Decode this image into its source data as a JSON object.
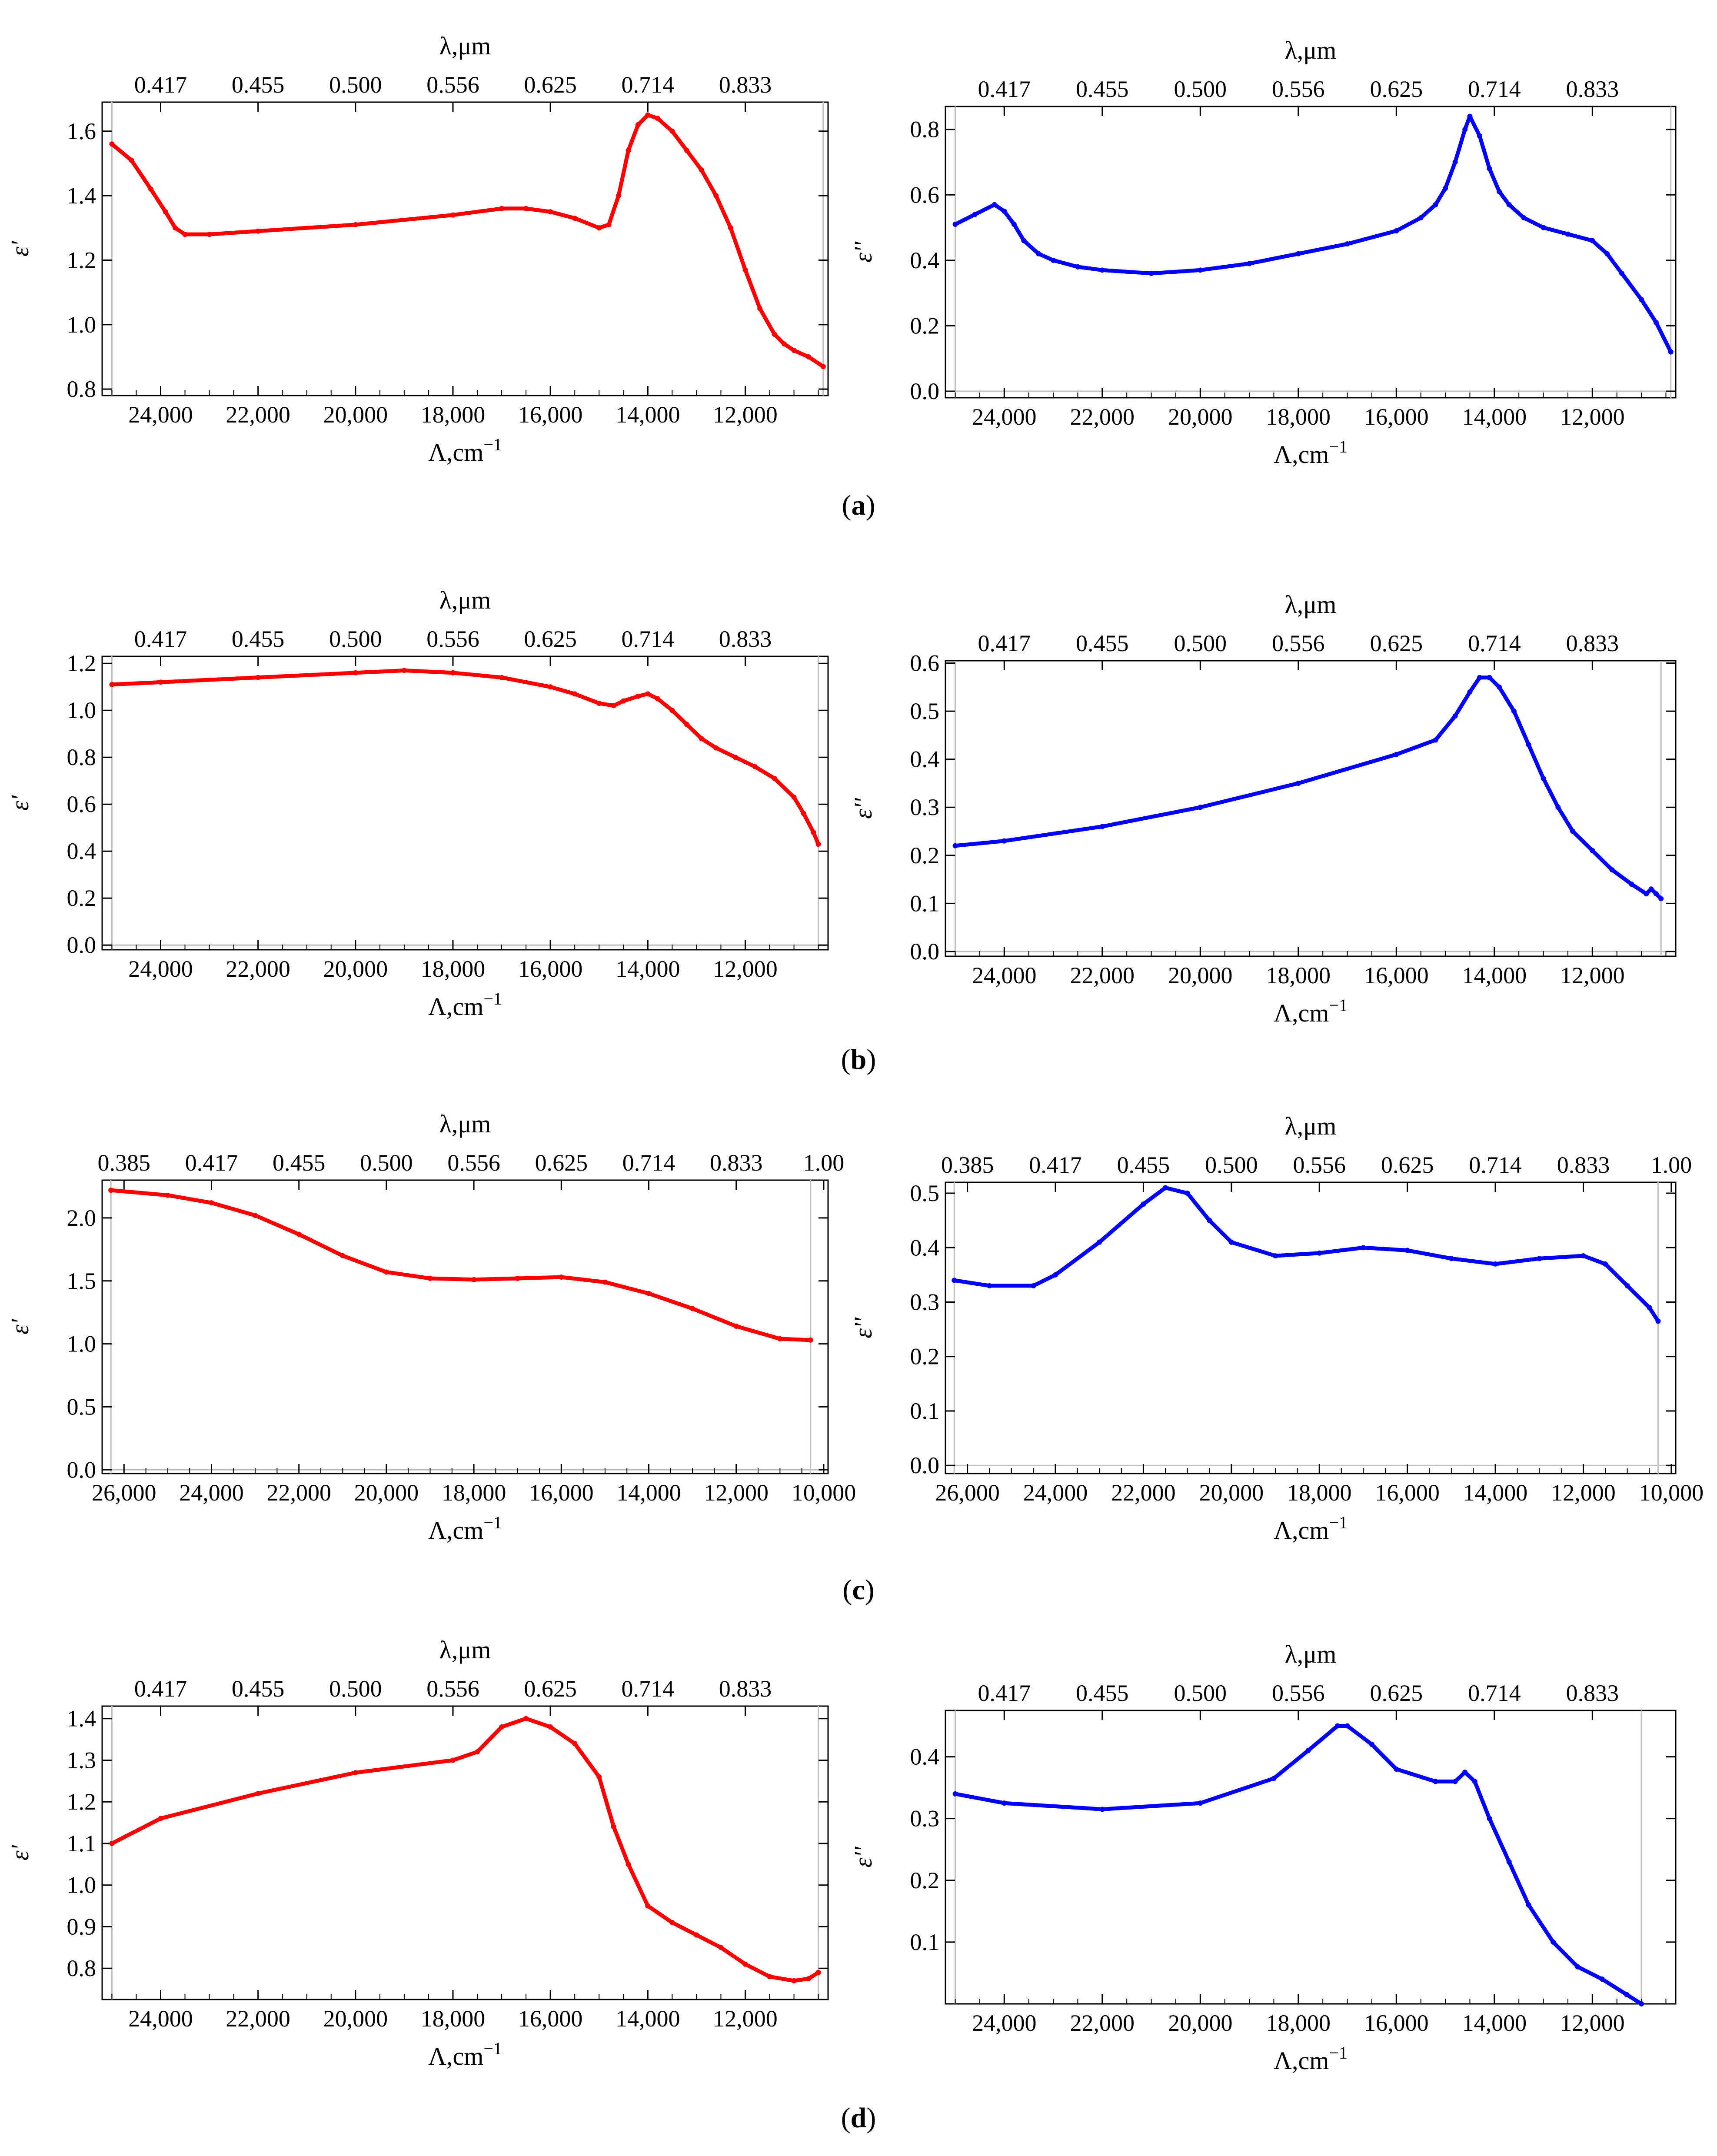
{
  "figure": {
    "panel_labels": [
      "(a)",
      "(b)",
      "(c)",
      "(d)"
    ]
  },
  "style": {
    "real_color": "#ff0000",
    "imag_color": "#0000ff",
    "axis_color": "#000000",
    "frame_color": "#bfbfbf"
  },
  "chart_data": [
    {
      "id": "a-left",
      "type": "scatter",
      "panel": "a",
      "ylabel": "ε'",
      "xlabel": "Λ,cm",
      "xlabel_sup": "−1",
      "top_label": "λ,μm",
      "xlim": [
        25200,
        10300
      ],
      "ylim": [
        0.78,
        1.69
      ],
      "xticks": [
        24000,
        22000,
        20000,
        18000,
        16000,
        14000,
        12000
      ],
      "xtick_labels": [
        "24,000",
        "22,000",
        "20,000",
        "18,000",
        "16,000",
        "14,000",
        "12,000"
      ],
      "yticks": [
        0.8,
        1.0,
        1.2,
        1.4,
        1.6
      ],
      "ytick_labels": [
        "0.8",
        "1.0",
        "1.2",
        "1.4",
        "1.6"
      ],
      "top_tick_labels": [
        "0.417",
        "0.455",
        "0.500",
        "0.556",
        "0.625",
        "0.714",
        "0.833"
      ],
      "x": [
        25000,
        24600,
        24200,
        23900,
        23700,
        23500,
        23000,
        22000,
        20000,
        18000,
        17000,
        16500,
        16000,
        15500,
        15000,
        14800,
        14600,
        14400,
        14200,
        14000,
        13800,
        13500,
        13200,
        12900,
        12600,
        12300,
        12000,
        11700,
        11400,
        11200,
        11000,
        10700,
        10400
      ],
      "y": [
        1.56,
        1.51,
        1.42,
        1.35,
        1.3,
        1.28,
        1.28,
        1.29,
        1.31,
        1.34,
        1.36,
        1.36,
        1.35,
        1.33,
        1.3,
        1.31,
        1.4,
        1.54,
        1.62,
        1.65,
        1.64,
        1.6,
        1.54,
        1.48,
        1.4,
        1.3,
        1.17,
        1.05,
        0.97,
        0.94,
        0.92,
        0.9,
        0.87
      ]
    },
    {
      "id": "a-right",
      "type": "scatter",
      "panel": "a",
      "ylabel": "ε''",
      "xlabel": "Λ,cm",
      "xlabel_sup": "−1",
      "top_label": "λ,μm",
      "xlim": [
        25200,
        10300
      ],
      "ylim": [
        -0.02,
        0.87
      ],
      "xticks": [
        24000,
        22000,
        20000,
        18000,
        16000,
        14000,
        12000
      ],
      "xtick_labels": [
        "24,000",
        "22,000",
        "20,000",
        "18,000",
        "16,000",
        "14,000",
        "12,000"
      ],
      "yticks": [
        0.0,
        0.2,
        0.4,
        0.6,
        0.8
      ],
      "ytick_labels": [
        "0.0",
        "0.2",
        "0.4",
        "0.6",
        "0.8"
      ],
      "top_tick_labels": [
        "0.417",
        "0.455",
        "0.500",
        "0.556",
        "0.625",
        "0.714",
        "0.833"
      ],
      "x": [
        25000,
        24600,
        24200,
        24000,
        23800,
        23600,
        23300,
        23000,
        22500,
        22000,
        21000,
        20000,
        19000,
        18000,
        17000,
        16000,
        15500,
        15200,
        15000,
        14800,
        14600,
        14500,
        14300,
        14100,
        13900,
        13700,
        13400,
        13000,
        12500,
        12000,
        11700,
        11400,
        11000,
        10700,
        10400
      ],
      "y": [
        0.51,
        0.54,
        0.57,
        0.55,
        0.51,
        0.46,
        0.42,
        0.4,
        0.38,
        0.37,
        0.36,
        0.37,
        0.39,
        0.42,
        0.45,
        0.49,
        0.53,
        0.57,
        0.62,
        0.7,
        0.8,
        0.84,
        0.78,
        0.68,
        0.61,
        0.57,
        0.53,
        0.5,
        0.48,
        0.46,
        0.42,
        0.36,
        0.28,
        0.21,
        0.12
      ]
    },
    {
      "id": "b-left",
      "type": "scatter",
      "panel": "b",
      "ylabel": "ε'",
      "xlabel": "Λ,cm",
      "xlabel_sup": "−1",
      "top_label": "λ,μm",
      "xlim": [
        25200,
        10300
      ],
      "ylim": [
        -0.02,
        1.23
      ],
      "xticks": [
        24000,
        22000,
        20000,
        18000,
        16000,
        14000,
        12000
      ],
      "xtick_labels": [
        "24,000",
        "22,000",
        "20,000",
        "18,000",
        "16,000",
        "14,000",
        "12,000"
      ],
      "yticks": [
        0.0,
        0.2,
        0.4,
        0.6,
        0.8,
        1.0,
        1.2
      ],
      "ytick_labels": [
        "0.0",
        "0.2",
        "0.4",
        "0.6",
        "0.8",
        "1.0",
        "1.2"
      ],
      "top_tick_labels": [
        "0.417",
        "0.455",
        "0.500",
        "0.556",
        "0.625",
        "0.714",
        "0.833"
      ],
      "x": [
        25000,
        24000,
        22000,
        20000,
        19000,
        18000,
        17000,
        16000,
        15500,
        15000,
        14700,
        14500,
        14200,
        14000,
        13800,
        13500,
        13200,
        12900,
        12600,
        12200,
        11800,
        11400,
        11000,
        10800,
        10600,
        10500
      ],
      "y": [
        1.11,
        1.12,
        1.14,
        1.16,
        1.17,
        1.16,
        1.14,
        1.1,
        1.07,
        1.03,
        1.02,
        1.04,
        1.06,
        1.07,
        1.05,
        1.0,
        0.94,
        0.88,
        0.84,
        0.8,
        0.76,
        0.71,
        0.63,
        0.56,
        0.48,
        0.43
      ]
    },
    {
      "id": "b-right",
      "type": "scatter",
      "panel": "b",
      "ylabel": "ε''",
      "xlabel": "Λ,cm",
      "xlabel_sup": "−1",
      "top_label": "λ,μm",
      "xlim": [
        25200,
        10300
      ],
      "ylim": [
        -0.01,
        0.605
      ],
      "xticks": [
        24000,
        22000,
        20000,
        18000,
        16000,
        14000,
        12000
      ],
      "xtick_labels": [
        "24,000",
        "22,000",
        "20,000",
        "18,000",
        "16,000",
        "14,000",
        "12,000"
      ],
      "yticks": [
        0.0,
        0.1,
        0.2,
        0.3,
        0.4,
        0.5,
        0.6
      ],
      "ytick_labels": [
        "0.0",
        "0.1",
        "0.2",
        "0.3",
        "0.4",
        "0.5",
        "0.6"
      ],
      "top_tick_labels": [
        "0.417",
        "0.455",
        "0.500",
        "0.556",
        "0.625",
        "0.714",
        "0.833"
      ],
      "x": [
        25000,
        24000,
        22000,
        20000,
        18000,
        16000,
        15200,
        14800,
        14500,
        14300,
        14100,
        13900,
        13600,
        13300,
        13000,
        12700,
        12400,
        12000,
        11600,
        11200,
        10900,
        10800,
        10700,
        10600
      ],
      "y": [
        0.22,
        0.23,
        0.26,
        0.3,
        0.35,
        0.41,
        0.44,
        0.49,
        0.54,
        0.57,
        0.57,
        0.55,
        0.5,
        0.43,
        0.36,
        0.3,
        0.25,
        0.21,
        0.17,
        0.14,
        0.12,
        0.13,
        0.12,
        0.11
      ]
    },
    {
      "id": "c-left",
      "type": "scatter",
      "panel": "c",
      "ylabel": "ε'",
      "xlabel": "Λ,cm",
      "xlabel_sup": "−1",
      "top_label": "λ,μm",
      "xlim": [
        26500,
        9900
      ],
      "ylim": [
        -0.03,
        2.3
      ],
      "xticks": [
        26000,
        24000,
        22000,
        20000,
        18000,
        16000,
        14000,
        12000,
        10000
      ],
      "xtick_labels": [
        "26,000",
        "24,000",
        "22,000",
        "20,000",
        "18,000",
        "16,000",
        "14,000",
        "12,000",
        "10,000"
      ],
      "yticks": [
        0.0,
        0.5,
        1.0,
        1.5,
        2.0
      ],
      "ytick_labels": [
        "0.0",
        "0.5",
        "1.0",
        "1.5",
        "2.0"
      ],
      "top_tick_labels": [
        "0.385",
        "0.417",
        "0.455",
        "0.500",
        "0.556",
        "0.625",
        "0.714",
        "0.833",
        "1.00"
      ],
      "x": [
        26300,
        25000,
        24000,
        23000,
        22000,
        21000,
        20000,
        19000,
        18000,
        17000,
        16000,
        15000,
        14000,
        13000,
        12000,
        11000,
        10300
      ],
      "y": [
        2.22,
        2.18,
        2.12,
        2.02,
        1.87,
        1.7,
        1.57,
        1.52,
        1.51,
        1.52,
        1.53,
        1.49,
        1.4,
        1.28,
        1.14,
        1.04,
        1.03
      ]
    },
    {
      "id": "c-right",
      "type": "scatter",
      "panel": "c",
      "ylabel": "ε''",
      "xlabel": "Λ,cm",
      "xlabel_sup": "−1",
      "top_label": "λ,μm",
      "xlim": [
        26500,
        9900
      ],
      "ylim": [
        -0.015,
        0.52
      ],
      "xticks": [
        26000,
        24000,
        22000,
        20000,
        18000,
        16000,
        14000,
        12000,
        10000
      ],
      "xtick_labels": [
        "26,000",
        "24,000",
        "22,000",
        "20,000",
        "18,000",
        "16,000",
        "14,000",
        "12,000",
        "10,000"
      ],
      "yticks": [
        0.0,
        0.1,
        0.2,
        0.3,
        0.4,
        0.5
      ],
      "ytick_labels": [
        "0.0",
        "0.1",
        "0.2",
        "0.3",
        "0.4",
        "0.5"
      ],
      "top_tick_labels": [
        "0.385",
        "0.417",
        "0.455",
        "0.500",
        "0.556",
        "0.625",
        "0.714",
        "0.833",
        "1.00"
      ],
      "x": [
        26300,
        25500,
        24500,
        24000,
        23000,
        22000,
        21500,
        21000,
        20500,
        20000,
        19000,
        18000,
        17000,
        16000,
        15000,
        14000,
        13000,
        12000,
        11500,
        11000,
        10500,
        10300
      ],
      "y": [
        0.34,
        0.33,
        0.33,
        0.35,
        0.41,
        0.48,
        0.51,
        0.5,
        0.45,
        0.41,
        0.385,
        0.39,
        0.4,
        0.395,
        0.38,
        0.37,
        0.38,
        0.385,
        0.37,
        0.33,
        0.29,
        0.265
      ]
    },
    {
      "id": "d-left",
      "type": "scatter",
      "panel": "d",
      "ylabel": "ε'",
      "xlabel": "Λ,cm",
      "xlabel_sup": "−1",
      "top_label": "λ,μm",
      "xlim": [
        25200,
        10300
      ],
      "ylim": [
        0.725,
        1.43
      ],
      "xticks": [
        24000,
        22000,
        20000,
        18000,
        16000,
        14000,
        12000
      ],
      "xtick_labels": [
        "24,000",
        "22,000",
        "20,000",
        "18,000",
        "16,000",
        "14,000",
        "12,000"
      ],
      "yticks": [
        0.8,
        0.9,
        1.0,
        1.1,
        1.2,
        1.3,
        1.4
      ],
      "ytick_labels": [
        "0.8",
        "0.9",
        "1.0",
        "1.1",
        "1.2",
        "1.3",
        "1.4"
      ],
      "top_tick_labels": [
        "0.417",
        "0.455",
        "0.500",
        "0.556",
        "0.625",
        "0.714",
        "0.833"
      ],
      "x": [
        25000,
        24000,
        22000,
        20000,
        18000,
        17500,
        17000,
        16500,
        16000,
        15500,
        15000,
        14700,
        14400,
        14000,
        13500,
        13000,
        12500,
        12000,
        11500,
        11000,
        10700,
        10500
      ],
      "y": [
        1.1,
        1.16,
        1.22,
        1.27,
        1.3,
        1.32,
        1.38,
        1.4,
        1.38,
        1.34,
        1.26,
        1.14,
        1.05,
        0.95,
        0.91,
        0.88,
        0.85,
        0.81,
        0.78,
        0.77,
        0.775,
        0.79
      ]
    },
    {
      "id": "d-right",
      "type": "scatter",
      "panel": "d",
      "ylabel": "ε''",
      "xlabel": "Λ,cm",
      "xlabel_sup": "−1",
      "top_label": "λ,μm",
      "xlim": [
        25200,
        10300
      ],
      "ylim": [
        0.0,
        0.475
      ],
      "xticks": [
        24000,
        22000,
        20000,
        18000,
        16000,
        14000,
        12000
      ],
      "xtick_labels": [
        "24,000",
        "22,000",
        "20,000",
        "18,000",
        "16,000",
        "14,000",
        "12,000"
      ],
      "yticks": [
        0.1,
        0.2,
        0.3,
        0.4
      ],
      "ytick_labels": [
        "0.1",
        "0.2",
        "0.3",
        "0.4"
      ],
      "top_tick_labels": [
        "0.417",
        "0.455",
        "0.500",
        "0.556",
        "0.625",
        "0.714",
        "0.833"
      ],
      "x": [
        25000,
        24000,
        22000,
        20000,
        18500,
        17800,
        17200,
        17000,
        16500,
        16000,
        15200,
        14800,
        14600,
        14400,
        14100,
        13700,
        13300,
        12800,
        12300,
        11800,
        11300,
        11000
      ],
      "y": [
        0.34,
        0.325,
        0.315,
        0.325,
        0.365,
        0.41,
        0.45,
        0.45,
        0.42,
        0.38,
        0.36,
        0.36,
        0.375,
        0.36,
        0.3,
        0.23,
        0.16,
        0.1,
        0.06,
        0.04,
        0.015,
        0.0
      ]
    }
  ]
}
